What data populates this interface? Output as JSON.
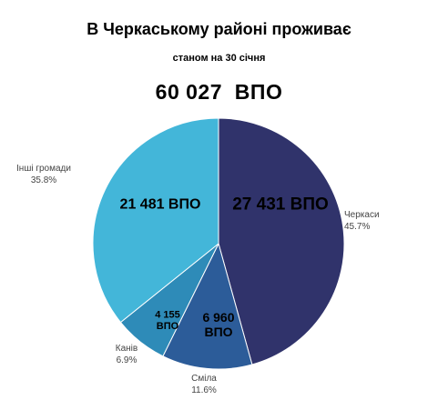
{
  "header": {
    "title": "В Черкаському районі проживає",
    "subtitle": "станом на 30 січня",
    "total_value": "60 027",
    "total_unit": "ВПО"
  },
  "chart_data": {
    "type": "pie",
    "title": "В Черкаському районі проживає",
    "subtitle": "станом на 30 січня",
    "total": "60 027  ВПО",
    "slices": [
      {
        "name": "Черкаси",
        "value": 27431,
        "value_label": [
          "27 431 ВПО"
        ],
        "percent": "45.7%",
        "color": "#30336b"
      },
      {
        "name": "Сміла",
        "value": 6960,
        "value_label": [
          "6 960",
          "ВПО"
        ],
        "percent": "11.6%",
        "color": "#2c5c99"
      },
      {
        "name": "Канів",
        "value": 4155,
        "value_label": [
          "4 155",
          "ВПО"
        ],
        "percent": "6.9%",
        "color": "#2e8bb8"
      },
      {
        "name": "Інші громади",
        "value": 21481,
        "value_label": [
          "21 481 ВПО"
        ],
        "percent": "35.8%",
        "color": "#43b6d9"
      }
    ]
  }
}
